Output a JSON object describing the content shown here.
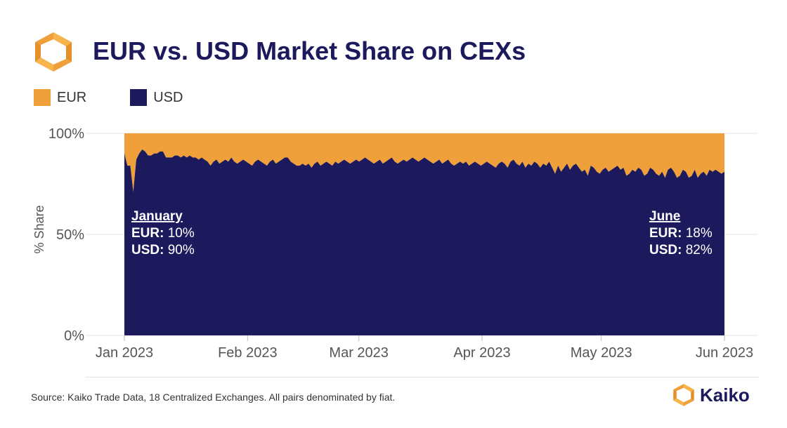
{
  "chart_data": {
    "type": "area",
    "stacked": true,
    "percent": true,
    "title": "EUR vs. USD Market Share on CEXs",
    "ylabel": "% Share",
    "xlabel": "",
    "ylim": [
      0,
      100
    ],
    "y_ticks": [
      {
        "value": 0,
        "label": "0%"
      },
      {
        "value": 50,
        "label": "50%"
      },
      {
        "value": 100,
        "label": "100%"
      }
    ],
    "x_ticks": [
      {
        "date": "2023-01-01",
        "label": "Jan 2023"
      },
      {
        "date": "2023-02-01",
        "label": "Feb 2023"
      },
      {
        "date": "2023-03-01",
        "label": "Mar 2023"
      },
      {
        "date": "2023-04-01",
        "label": "Apr 2023"
      },
      {
        "date": "2023-05-01",
        "label": "May 2023"
      },
      {
        "date": "2023-06-01",
        "label": "Jun 2023"
      }
    ],
    "x_range": [
      "2023-01-01",
      "2023-06-01"
    ],
    "grid": true,
    "legend_position": "top-left",
    "series": [
      {
        "name": "EUR",
        "color": "#f0a03a",
        "values": [
          10,
          16,
          16,
          29,
          13,
          10,
          8,
          9,
          11,
          11,
          10,
          10,
          9,
          9,
          12,
          12,
          12,
          11,
          11,
          12,
          11,
          12,
          11,
          12,
          12,
          13,
          12,
          13,
          14,
          16,
          14,
          13,
          15,
          14,
          13,
          14,
          12,
          14,
          15,
          14,
          13,
          14,
          15,
          16,
          14,
          13,
          14,
          15,
          16,
          14,
          13,
          15,
          14,
          13,
          12,
          12,
          14,
          15,
          16,
          16,
          15,
          16,
          15,
          17,
          15,
          14,
          16,
          15,
          14,
          15,
          16,
          14,
          15,
          14,
          13,
          14,
          15,
          14,
          13,
          14,
          13,
          12,
          13,
          14,
          15,
          14,
          13,
          15,
          14,
          13,
          12,
          14,
          15,
          14,
          13,
          14,
          13,
          12,
          13,
          14,
          13,
          12,
          13,
          14,
          15,
          14,
          13,
          15,
          14,
          13,
          15,
          16,
          15,
          14,
          15,
          14,
          16,
          15,
          14,
          15,
          16,
          15,
          14,
          15,
          16,
          17,
          15,
          14,
          15,
          17,
          14,
          13,
          15,
          16,
          14,
          17,
          15,
          16,
          14,
          15,
          17,
          15,
          16,
          14,
          17,
          20,
          16,
          19,
          17,
          15,
          18,
          16,
          15,
          17,
          19,
          18,
          21,
          16,
          17,
          19,
          20,
          18,
          17,
          19,
          18,
          17,
          16,
          18,
          17,
          21,
          20,
          18,
          19,
          17,
          18,
          21,
          20,
          17,
          18,
          20,
          21,
          19,
          22,
          18,
          17,
          19,
          22,
          21,
          18,
          19,
          22,
          21,
          18,
          22,
          20,
          19,
          21,
          18,
          19,
          18,
          19,
          20,
          19
        ]
      },
      {
        "name": "USD",
        "color": "#1c1a5c",
        "values": [
          90,
          84,
          84,
          71,
          87,
          90,
          92,
          91,
          89,
          89,
          90,
          90,
          91,
          91,
          88,
          88,
          88,
          89,
          89,
          88,
          89,
          88,
          89,
          88,
          88,
          87,
          88,
          87,
          86,
          84,
          86,
          87,
          85,
          86,
          87,
          86,
          88,
          86,
          85,
          86,
          87,
          86,
          85,
          84,
          86,
          87,
          86,
          85,
          84,
          86,
          87,
          85,
          86,
          87,
          88,
          88,
          86,
          85,
          84,
          84,
          85,
          84,
          85,
          83,
          85,
          86,
          84,
          85,
          86,
          85,
          84,
          86,
          85,
          86,
          87,
          86,
          85,
          86,
          87,
          86,
          87,
          88,
          87,
          86,
          85,
          86,
          87,
          85,
          86,
          87,
          88,
          86,
          85,
          86,
          87,
          86,
          87,
          88,
          87,
          86,
          87,
          88,
          87,
          86,
          85,
          86,
          87,
          85,
          86,
          87,
          85,
          84,
          85,
          86,
          85,
          86,
          84,
          85,
          86,
          85,
          84,
          85,
          86,
          85,
          84,
          83,
          85,
          86,
          85,
          83,
          86,
          87,
          85,
          84,
          86,
          83,
          85,
          84,
          86,
          85,
          83,
          85,
          84,
          86,
          83,
          80,
          84,
          81,
          83,
          85,
          82,
          84,
          85,
          83,
          81,
          82,
          79,
          84,
          83,
          81,
          80,
          82,
          83,
          81,
          82,
          83,
          84,
          82,
          83,
          79,
          80,
          82,
          81,
          83,
          82,
          79,
          80,
          83,
          82,
          80,
          79,
          81,
          78,
          82,
          83,
          81,
          78,
          79,
          82,
          81,
          78,
          79,
          82,
          78,
          80,
          81,
          79,
          82,
          81,
          82,
          81,
          80,
          81
        ]
      }
    ],
    "annotations": [
      {
        "side": "left",
        "heading": "January",
        "eur_label": "EUR:",
        "eur_value": "10%",
        "usd_label": "USD:",
        "usd_value": "90%"
      },
      {
        "side": "right",
        "heading": "June",
        "eur_label": "EUR:",
        "eur_value": "18%",
        "usd_label": "USD:",
        "usd_value": "82%"
      }
    ]
  },
  "footer": {
    "source": "Source: Kaiko Trade Data, 18 Centralized Exchanges. All pairs denominated by fiat.",
    "brand": "Kaiko"
  },
  "colors": {
    "accent": "#f0a03a",
    "navy": "#1c1a5c",
    "grid": "#e6e6e6",
    "axis_text": "#555555"
  }
}
